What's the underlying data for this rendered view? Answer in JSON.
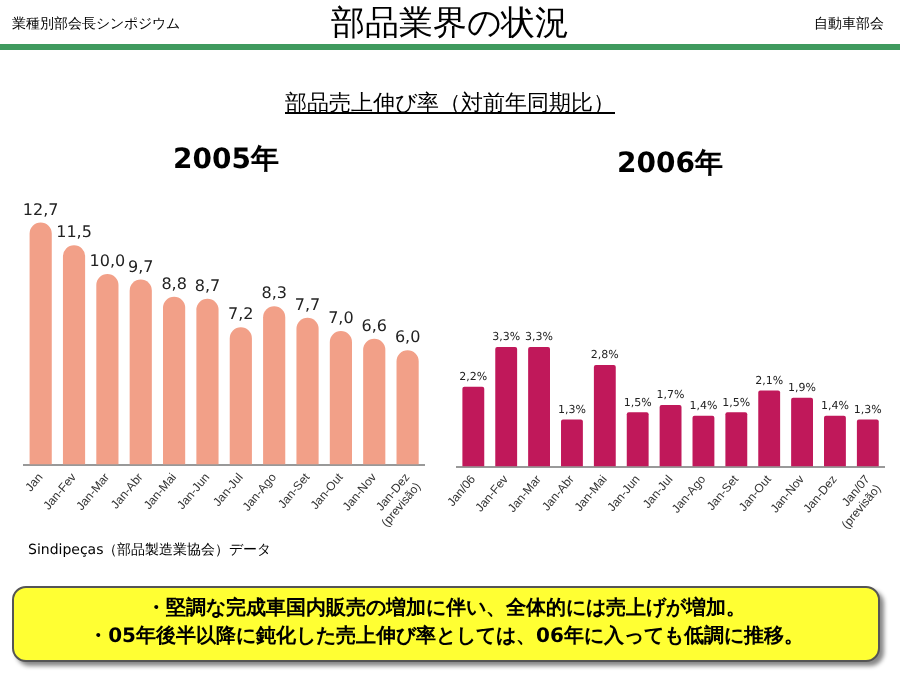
{
  "chart_data": [
    {
      "type": "other",
      "title": "部品業界の状況",
      "subtitle": "部品売上伸び率（対前年同期比）",
      "annotations": [
        "業種別部会長シンポジウム",
        "自動車部会",
        "・堅調な完成車国内販売の増加に伴い、全体的には売上げが増加。",
        "・05年後半以降に鈍化した売上伸び率としては、06年に入っても低調に推移。"
      ]
    },
    {
      "type": "bar",
      "title": "2005年",
      "categories": [
        "Jan",
        "Jan-Fev",
        "Jan-Mar",
        "Jan-Abr",
        "Jan-Mai",
        "Jan-Jun",
        "Jan-Jul",
        "Jan-Ago",
        "Jan-Set",
        "Jan-Out",
        "Jan-Nov",
        "Jan-Dez (previsão)"
      ],
      "values": [
        12.7,
        11.5,
        10.0,
        9.7,
        8.8,
        8.7,
        7.2,
        8.3,
        7.7,
        7.0,
        6.6,
        6.0
      ],
      "value_labels": [
        "12,7",
        "11,5",
        "10,0",
        "9,7",
        "8,8",
        "8,7",
        "7,2",
        "8,3",
        "7,7",
        "7,0",
        "6,6",
        "6,0"
      ],
      "color": "#f2a088",
      "tick_labels": "x",
      "grid": false,
      "legend": false,
      "annotations": [
        "Sindipeças（部品製造業協会）データ"
      ]
    },
    {
      "type": "bar",
      "title": "2006年",
      "categories": [
        "Jan/06",
        "Jan-Fev",
        "Jan-Mar",
        "Jan-Abr",
        "Jan-Mai",
        "Jan-Jun",
        "Jan-Jul",
        "Jan-Ago",
        "Jan-Set",
        "Jan-Out",
        "Jan-Nov",
        "Jan-Dez",
        "Jan/07 (previsão)"
      ],
      "values": [
        2.2,
        3.3,
        3.3,
        1.3,
        2.8,
        1.5,
        1.7,
        1.4,
        1.5,
        2.1,
        1.9,
        1.4,
        1.3
      ],
      "value_labels": [
        "2,2%",
        "3,3%",
        "3,3%",
        "1,3%",
        "2,8%",
        "1,5%",
        "1,7%",
        "1,4%",
        "1,5%",
        "2,1%",
        "1,9%",
        "1,4%",
        "1,3%"
      ],
      "color": "#c0185a",
      "tick_labels": "x",
      "grid": false,
      "legend": false
    }
  ]
}
